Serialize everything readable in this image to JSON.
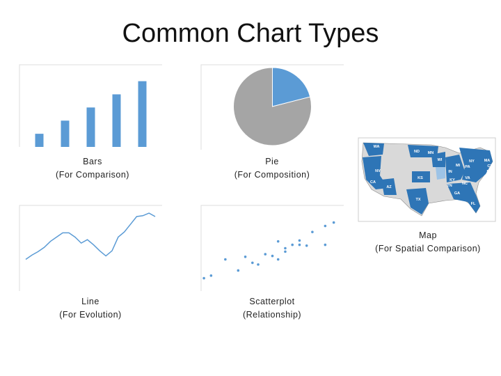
{
  "title": "Common Chart Types",
  "chart_data": [
    {
      "type": "bar",
      "caption": [
        "Bars",
        "(For Comparison)"
      ],
      "values": [
        16,
        32,
        48,
        64,
        80
      ],
      "color": "#5b9bd5",
      "ylim": [
        0,
        100
      ]
    },
    {
      "type": "pie",
      "caption": [
        "Pie",
        "(For Composition)"
      ],
      "values": [
        21,
        79
      ],
      "colors": [
        "#5b9bd5",
        "#a5a5a5"
      ]
    },
    {
      "type": "line",
      "caption": [
        "Line",
        "(For Evolution)"
      ],
      "values": [
        37,
        42,
        46,
        51,
        58,
        63,
        68,
        68,
        63,
        56,
        60,
        54,
        47,
        41,
        47,
        63,
        69,
        78,
        87,
        88,
        91,
        87
      ],
      "color": "#5b9bd5",
      "ylim": [
        0,
        100
      ]
    },
    {
      "type": "scatter",
      "caption": [
        "Scatterplot",
        "(Relationship)"
      ],
      "x": [
        2,
        7,
        17,
        26,
        31,
        36,
        40,
        45,
        50,
        54,
        54,
        59,
        59,
        64,
        69,
        69,
        74,
        78,
        87,
        87,
        93
      ],
      "values": [
        15,
        18,
        37,
        24,
        40,
        33,
        31,
        43,
        41,
        37,
        58,
        46,
        50,
        54,
        59,
        54,
        53,
        69,
        54,
        76,
        80
      ],
      "color": "#5b9bd5",
      "xlim": [
        0,
        100
      ],
      "ylim": [
        0,
        100
      ]
    }
  ],
  "map": {
    "caption": [
      "Map",
      "(For Spatial Comparison)"
    ],
    "labels": [
      "WA",
      "ND",
      "MN",
      "WI",
      "NY",
      "MA",
      "CT",
      "NJ",
      "MD",
      "PA",
      "MI",
      "IN",
      "NV",
      "CA",
      "KS",
      "KY",
      "VA",
      "NC",
      "TN",
      "AZ",
      "GA",
      "TX",
      "FL"
    ]
  }
}
